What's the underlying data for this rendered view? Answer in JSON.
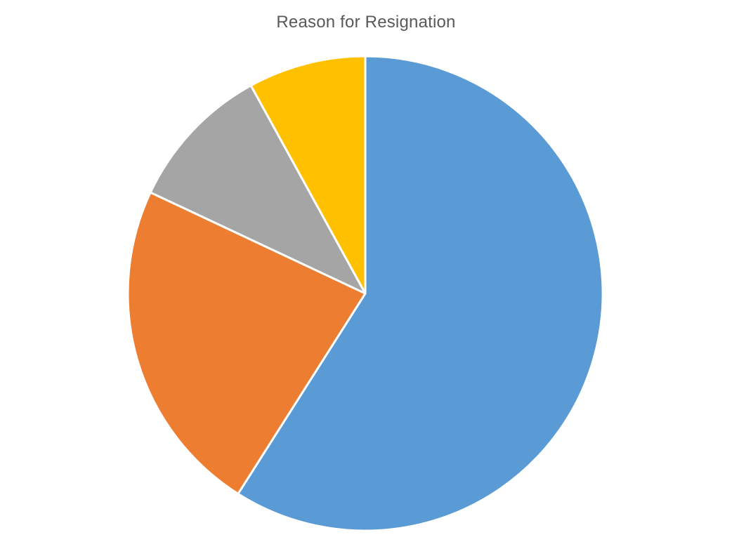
{
  "chart_data": {
    "type": "pie",
    "title": "Reason for Resignation",
    "legend": "none",
    "series": [
      {
        "values": [
          59,
          23,
          10,
          8
        ],
        "colors": [
          "#5B9BD5",
          "#ED7D31",
          "#A5A5A5",
          "#FFC000"
        ]
      }
    ]
  }
}
